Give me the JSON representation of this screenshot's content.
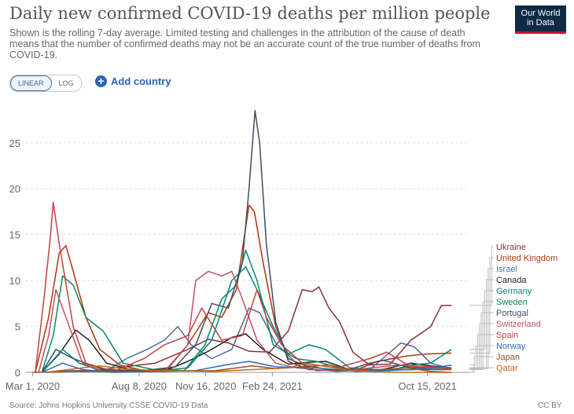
{
  "header": {
    "title": "Daily new confirmed COVID-19 deaths per million people",
    "subtitle": "Shown is the rolling 7-day average. Limited testing and challenges in the attribution of the cause of death means that the number of confirmed deaths may not be an accurate count of the true number of deaths from COVID-19.",
    "logo_line1": "Our World",
    "logo_line2": "in Data"
  },
  "controls": {
    "linear_label": "LINEAR",
    "log_label": "LOG",
    "add_country_label": "Add country"
  },
  "footer": {
    "source": "Source: Johns Hopkins University CSSE COVID-19 Data",
    "license": "CC BY"
  },
  "chart_data": {
    "type": "line",
    "ylim": [
      0,
      29
    ],
    "yticks": [
      0,
      5,
      10,
      15,
      20,
      25
    ],
    "xlim": [
      "2020-02-20",
      "2021-12-17"
    ],
    "xticks": [
      {
        "date": "2020-03-01",
        "label": "Mar 1, 2020"
      },
      {
        "date": "2020-08-08",
        "label": "Aug 8, 2020"
      },
      {
        "date": "2020-11-16",
        "label": "Nov 16, 2020"
      },
      {
        "date": "2021-02-24",
        "label": "Feb 24, 2021"
      },
      {
        "date": "2021-10-15",
        "label": "Oct 15, 2021"
      }
    ],
    "grid": "horizontal",
    "legend": "right",
    "series": [
      {
        "name": "Ukraine",
        "color": "#883039",
        "points": [
          [
            "2020-03-20",
            0
          ],
          [
            "2020-06-01",
            0.2
          ],
          [
            "2020-09-01",
            1.0
          ],
          [
            "2020-10-20",
            2.5
          ],
          [
            "2020-11-20",
            3.6
          ],
          [
            "2020-12-20",
            3.2
          ],
          [
            "2021-01-20",
            2.3
          ],
          [
            "2021-02-20",
            2.2
          ],
          [
            "2021-03-20",
            4.5
          ],
          [
            "2021-04-10",
            9.0
          ],
          [
            "2021-04-25",
            8.8
          ],
          [
            "2021-05-05",
            9.3
          ],
          [
            "2021-05-20",
            7.0
          ],
          [
            "2021-06-05",
            5.5
          ],
          [
            "2021-06-25",
            2.2
          ],
          [
            "2021-07-20",
            0.8
          ],
          [
            "2021-08-20",
            0.9
          ],
          [
            "2021-09-20",
            3.5
          ],
          [
            "2021-10-20",
            5.0
          ],
          [
            "2021-11-05",
            7.3
          ],
          [
            "2021-11-20",
            7.3
          ]
        ]
      },
      {
        "name": "United Kingdom",
        "color": "#b13507",
        "points": [
          [
            "2020-03-05",
            0
          ],
          [
            "2020-03-25",
            6
          ],
          [
            "2020-04-10",
            13
          ],
          [
            "2020-04-20",
            13.8
          ],
          [
            "2020-05-01",
            11
          ],
          [
            "2020-05-20",
            6
          ],
          [
            "2020-06-10",
            2.5
          ],
          [
            "2020-07-10",
            0.8
          ],
          [
            "2020-08-15",
            0.2
          ],
          [
            "2020-09-20",
            0.4
          ],
          [
            "2020-10-20",
            3
          ],
          [
            "2020-11-20",
            6.5
          ],
          [
            "2020-12-10",
            6
          ],
          [
            "2021-01-01",
            9
          ],
          [
            "2021-01-20",
            18.2
          ],
          [
            "2021-01-28",
            17.5
          ],
          [
            "2021-02-10",
            12
          ],
          [
            "2021-03-01",
            5
          ],
          [
            "2021-03-20",
            1.5
          ],
          [
            "2021-05-01",
            0.2
          ],
          [
            "2021-07-01",
            0.3
          ],
          [
            "2021-08-01",
            1.2
          ],
          [
            "2021-09-15",
            1.8
          ],
          [
            "2021-10-15",
            2.0
          ],
          [
            "2021-11-20",
            2.1
          ]
        ]
      },
      {
        "name": "Israel",
        "color": "#4c6a9c",
        "points": [
          [
            "2020-03-20",
            0
          ],
          [
            "2020-05-01",
            0.2
          ],
          [
            "2020-06-20",
            0.2
          ],
          [
            "2020-07-20",
            1.5
          ],
          [
            "2020-08-20",
            2.5
          ],
          [
            "2020-09-15",
            3.5
          ],
          [
            "2020-10-05",
            5.0
          ],
          [
            "2020-10-25",
            3.0
          ],
          [
            "2020-11-25",
            1.5
          ],
          [
            "2020-12-25",
            2.5
          ],
          [
            "2021-01-20",
            7.0
          ],
          [
            "2021-02-05",
            6.5
          ],
          [
            "2021-03-01",
            3.2
          ],
          [
            "2021-04-01",
            1.0
          ],
          [
            "2021-06-01",
            0.1
          ],
          [
            "2021-07-20",
            0.3
          ],
          [
            "2021-08-20",
            2.2
          ],
          [
            "2021-09-05",
            3.2
          ],
          [
            "2021-09-25",
            2.8
          ],
          [
            "2021-10-20",
            1.0
          ],
          [
            "2021-11-20",
            0.4
          ]
        ]
      },
      {
        "name": "Canada",
        "color": "#222222",
        "points": [
          [
            "2020-03-15",
            0
          ],
          [
            "2020-04-10",
            2.0
          ],
          [
            "2020-05-05",
            4.6
          ],
          [
            "2020-05-25",
            3.5
          ],
          [
            "2020-06-20",
            1.0
          ],
          [
            "2020-08-01",
            0.2
          ],
          [
            "2020-09-20",
            0.3
          ],
          [
            "2020-10-20",
            1.2
          ],
          [
            "2020-11-20",
            2.3
          ],
          [
            "2020-12-25",
            3.8
          ],
          [
            "2021-01-15",
            4.2
          ],
          [
            "2021-02-10",
            2.5
          ],
          [
            "2021-03-20",
            0.9
          ],
          [
            "2021-04-20",
            1.1
          ],
          [
            "2021-05-15",
            1.2
          ],
          [
            "2021-06-20",
            0.3
          ],
          [
            "2021-08-01",
            0.2
          ],
          [
            "2021-09-20",
            1.0
          ],
          [
            "2021-10-20",
            0.7
          ],
          [
            "2021-11-20",
            0.5
          ]
        ]
      },
      {
        "name": "Germany",
        "color": "#00847e",
        "points": [
          [
            "2020-03-15",
            0
          ],
          [
            "2020-04-15",
            2.5
          ],
          [
            "2020-05-10",
            1.0
          ],
          [
            "2020-06-10",
            0.2
          ],
          [
            "2020-09-01",
            0.1
          ],
          [
            "2020-10-20",
            0.5
          ],
          [
            "2020-11-25",
            3.5
          ],
          [
            "2020-12-25",
            10.0
          ],
          [
            "2021-01-15",
            11.5
          ],
          [
            "2021-02-01",
            9.0
          ],
          [
            "2021-02-25",
            5.0
          ],
          [
            "2021-03-20",
            2.0
          ],
          [
            "2021-04-20",
            3.0
          ],
          [
            "2021-05-15",
            2.5
          ],
          [
            "2021-06-20",
            0.5
          ],
          [
            "2021-08-20",
            0.2
          ],
          [
            "2021-09-20",
            0.8
          ],
          [
            "2021-10-20",
            1.0
          ],
          [
            "2021-11-20",
            2.5
          ]
        ]
      },
      {
        "name": "Sweden",
        "color": "#0a8a5a",
        "points": [
          [
            "2020-03-15",
            0
          ],
          [
            "2020-04-01",
            4.0
          ],
          [
            "2020-04-15",
            10.5
          ],
          [
            "2020-05-01",
            9.5
          ],
          [
            "2020-05-20",
            6.0
          ],
          [
            "2020-06-15",
            4.5
          ],
          [
            "2020-07-15",
            1.0
          ],
          [
            "2020-08-30",
            0.3
          ],
          [
            "2020-10-15",
            0.2
          ],
          [
            "2020-11-15",
            3.0
          ],
          [
            "2020-12-10",
            8.0
          ],
          [
            "2021-01-01",
            9.5
          ],
          [
            "2021-01-15",
            13.3
          ],
          [
            "2021-02-01",
            10.0
          ],
          [
            "2021-02-25",
            3.0
          ],
          [
            "2021-04-01",
            1.5
          ],
          [
            "2021-05-01",
            1.2
          ],
          [
            "2021-06-20",
            0.2
          ],
          [
            "2021-09-01",
            0.3
          ],
          [
            "2021-11-20",
            0.3
          ]
        ]
      },
      {
        "name": "Portugal",
        "color": "#3c4e66",
        "points": [
          [
            "2020-03-15",
            0
          ],
          [
            "2020-04-05",
            2.5
          ],
          [
            "2020-05-01",
            1.5
          ],
          [
            "2020-06-15",
            0.3
          ],
          [
            "2020-08-15",
            0.2
          ],
          [
            "2020-10-01",
            0.6
          ],
          [
            "2020-11-01",
            3.0
          ],
          [
            "2020-11-25",
            7.5
          ],
          [
            "2020-12-20",
            7.0
          ],
          [
            "2021-01-10",
            12.0
          ],
          [
            "2021-01-20",
            20.0
          ],
          [
            "2021-01-29",
            28.5
          ],
          [
            "2021-02-05",
            25.0
          ],
          [
            "2021-02-15",
            14.0
          ],
          [
            "2021-03-01",
            5.5
          ],
          [
            "2021-03-20",
            1.2
          ],
          [
            "2021-04-20",
            0.3
          ],
          [
            "2021-06-15",
            0.2
          ],
          [
            "2021-07-20",
            1.0
          ],
          [
            "2021-08-10",
            1.3
          ],
          [
            "2021-09-20",
            0.5
          ],
          [
            "2021-11-20",
            0.4
          ]
        ]
      },
      {
        "name": "Switzerland",
        "color": "#c15065",
        "points": [
          [
            "2020-03-10",
            0
          ],
          [
            "2020-03-25",
            4.0
          ],
          [
            "2020-04-05",
            9.0
          ],
          [
            "2020-04-20",
            6.0
          ],
          [
            "2020-05-15",
            1.0
          ],
          [
            "2020-06-15",
            0.1
          ],
          [
            "2020-09-15",
            0.1
          ],
          [
            "2020-10-20",
            3.0
          ],
          [
            "2020-11-01",
            10.0
          ],
          [
            "2020-11-20",
            11.0
          ],
          [
            "2020-12-10",
            10.5
          ],
          [
            "2020-12-25",
            11.0
          ],
          [
            "2021-01-10",
            8.0
          ],
          [
            "2021-02-01",
            3.5
          ],
          [
            "2021-03-01",
            1.0
          ],
          [
            "2021-04-01",
            0.5
          ],
          [
            "2021-06-01",
            0.1
          ],
          [
            "2021-09-01",
            0.8
          ],
          [
            "2021-11-20",
            0.5
          ]
        ]
      },
      {
        "name": "Spain",
        "color": "#c5403d",
        "points": [
          [
            "2020-03-05",
            0
          ],
          [
            "2020-03-18",
            8.0
          ],
          [
            "2020-03-28",
            15.0
          ],
          [
            "2020-04-01",
            18.5
          ],
          [
            "2020-04-10",
            14.0
          ],
          [
            "2020-05-01",
            5.0
          ],
          [
            "2020-05-20",
            1.0
          ],
          [
            "2020-07-01",
            0.1
          ],
          [
            "2020-08-15",
            1.5
          ],
          [
            "2020-09-15",
            3.0
          ],
          [
            "2020-10-20",
            4.0
          ],
          [
            "2020-11-10",
            7.0
          ],
          [
            "2020-12-10",
            3.5
          ],
          [
            "2021-01-10",
            4.0
          ],
          [
            "2021-02-01",
            9.0
          ],
          [
            "2021-02-15",
            6.0
          ],
          [
            "2021-03-10",
            3.0
          ],
          [
            "2021-04-10",
            1.0
          ],
          [
            "2021-06-01",
            0.5
          ],
          [
            "2021-07-20",
            1.5
          ],
          [
            "2021-08-15",
            2.2
          ],
          [
            "2021-09-20",
            0.6
          ],
          [
            "2021-11-20",
            0.4
          ]
        ]
      },
      {
        "name": "Norway",
        "color": "#286bbb",
        "points": [
          [
            "2020-03-15",
            0
          ],
          [
            "2020-04-15",
            1.0
          ],
          [
            "2020-05-15",
            0.3
          ],
          [
            "2020-07-01",
            0.0
          ],
          [
            "2020-11-01",
            0.2
          ],
          [
            "2020-12-15",
            0.8
          ],
          [
            "2021-01-20",
            1.2
          ],
          [
            "2021-03-01",
            0.6
          ],
          [
            "2021-05-01",
            0.5
          ],
          [
            "2021-07-01",
            0.1
          ],
          [
            "2021-09-20",
            0.3
          ],
          [
            "2021-10-20",
            0.4
          ],
          [
            "2021-11-20",
            0.8
          ]
        ]
      },
      {
        "name": "Japan",
        "color": "#9a5129",
        "points": [
          [
            "2020-03-01",
            0
          ],
          [
            "2020-05-01",
            0.1
          ],
          [
            "2020-08-20",
            0.1
          ],
          [
            "2020-12-01",
            0.2
          ],
          [
            "2021-01-25",
            0.7
          ],
          [
            "2021-03-01",
            0.4
          ],
          [
            "2021-05-20",
            0.8
          ],
          [
            "2021-07-01",
            0.2
          ],
          [
            "2021-08-25",
            0.4
          ],
          [
            "2021-09-15",
            0.5
          ],
          [
            "2021-10-20",
            0.1
          ],
          [
            "2021-11-20",
            0.0
          ]
        ]
      },
      {
        "name": "Qatar",
        "color": "#c96512",
        "points": [
          [
            "2020-03-20",
            0
          ],
          [
            "2020-05-15",
            0.5
          ],
          [
            "2020-06-10",
            0.7
          ],
          [
            "2020-07-15",
            0.4
          ],
          [
            "2020-09-01",
            0.2
          ],
          [
            "2020-12-01",
            0.1
          ],
          [
            "2021-03-20",
            0.5
          ],
          [
            "2021-04-15",
            1.0
          ],
          [
            "2021-05-10",
            0.7
          ],
          [
            "2021-06-20",
            0.2
          ],
          [
            "2021-09-01",
            0.0
          ],
          [
            "2021-11-20",
            0.0
          ]
        ]
      }
    ]
  }
}
